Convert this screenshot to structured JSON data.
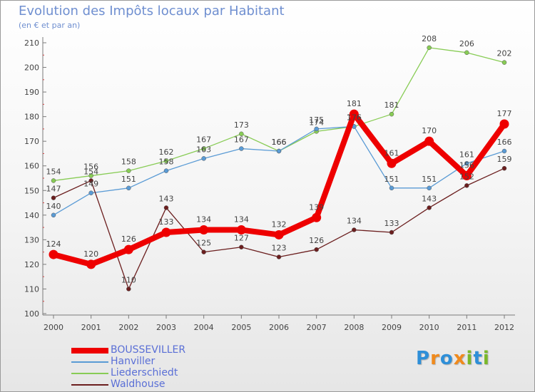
{
  "title": "Evolution des Impôts locaux par Habitant",
  "subtitle": "(en € et par an)",
  "logo": {
    "letters": [
      "P",
      "r",
      "o",
      "x",
      "i",
      "t",
      "i"
    ],
    "colors": [
      "#2e8fd8",
      "#f08a1c",
      "#2e8fd8",
      "#f08a1c",
      "#7ab82a",
      "#2e8fd8",
      "#7ab82a"
    ]
  },
  "chart_data": {
    "type": "line",
    "title": "Evolution des Impôts locaux par Habitant",
    "ylabel": "(en € et par an)",
    "xlabel": "",
    "categories": [
      "2000",
      "2001",
      "2002",
      "2003",
      "2004",
      "2005",
      "2006",
      "2007",
      "2008",
      "2009",
      "2010",
      "2011",
      "2012"
    ],
    "ylim": [
      100,
      210
    ],
    "yticks": [
      100,
      110,
      120,
      130,
      140,
      150,
      160,
      170,
      180,
      190,
      200,
      210
    ],
    "grid": false,
    "series": [
      {
        "name": "Liederschiedt",
        "color": "#88cc55",
        "values": [
          154,
          156,
          158,
          162,
          167,
          173,
          166,
          174,
          176,
          181,
          208,
          206,
          202
        ]
      },
      {
        "name": "Hanviller",
        "color": "#5a9bd5",
        "values": [
          140,
          149,
          151,
          158,
          163,
          167,
          166,
          175,
          176,
          151,
          151,
          161,
          166
        ]
      },
      {
        "name": "Waldhouse",
        "color": "#6b1e1e",
        "values": [
          147,
          154,
          110,
          143,
          125,
          127,
          123,
          126,
          134,
          133,
          143,
          152,
          159
        ]
      },
      {
        "name": "BOUSSEVILLER",
        "color": "#ee0000",
        "values": [
          124,
          120,
          126,
          133,
          134,
          134,
          132,
          139,
          181,
          161,
          170,
          156,
          177
        ]
      }
    ],
    "legend": [
      "BOUSSEVILLER",
      "Hanviller",
      "Liederschiedt",
      "Waldhouse"
    ]
  }
}
